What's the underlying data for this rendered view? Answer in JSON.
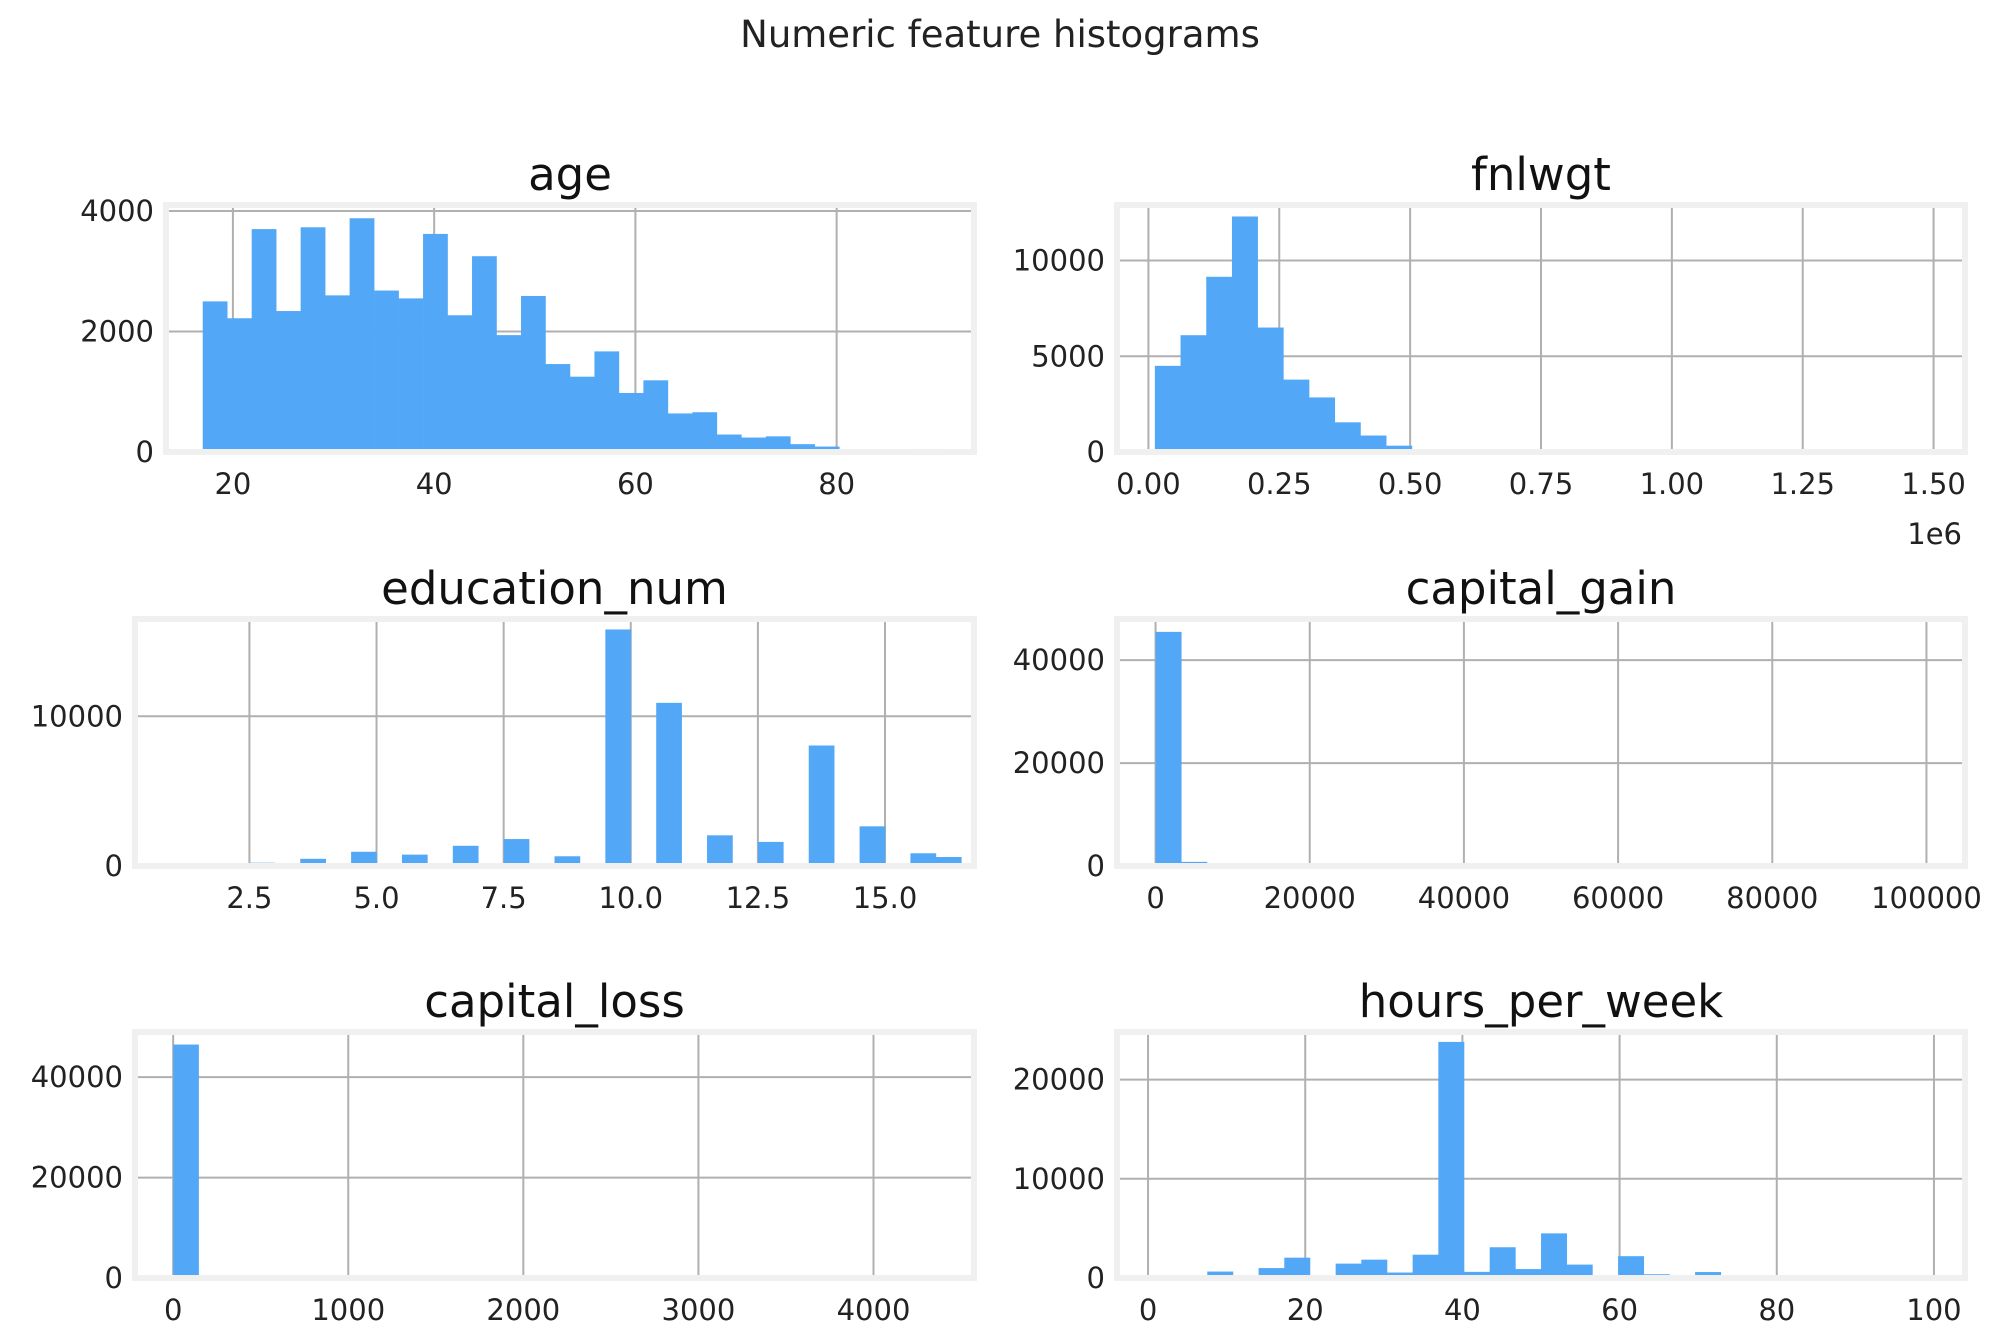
{
  "title": "Numeric feature histograms",
  "colors": {
    "bar": "#52a8f7",
    "grid": "#b0b0b0",
    "frame": "#f0f0f0"
  },
  "chart_data": [
    {
      "type": "bar",
      "title": "age",
      "grid": true,
      "xlim": [
        13.35,
        93.65
      ],
      "ylim": [
        0,
        4100
      ],
      "xticks": [
        20,
        40,
        60,
        80
      ],
      "yticks": [
        0,
        2000,
        4000
      ],
      "x_offset_label": "",
      "bin_start": 17,
      "bin_width": 2.433,
      "values": [
        2500,
        2220,
        3700,
        2340,
        3730,
        2600,
        3880,
        2680,
        2550,
        3620,
        2270,
        3250,
        1940,
        2590,
        1460,
        1250,
        1670,
        980,
        1190,
        640,
        660,
        290,
        240,
        260,
        130,
        90,
        20,
        20,
        20,
        50
      ]
    },
    {
      "type": "bar",
      "title": "fnlwgt",
      "grid": true,
      "xlim": [
        -0.06,
        1.56
      ],
      "ylim": [
        0,
        12900
      ],
      "xticks": [
        0.0,
        0.25,
        0.5,
        0.75,
        1.0,
        1.25,
        1.5
      ],
      "xtick_labels": [
        "0.00",
        "0.25",
        "0.50",
        "0.75",
        "1.00",
        "1.25",
        "1.50"
      ],
      "yticks": [
        0,
        5000,
        10000
      ],
      "x_offset_label": "1e6",
      "bin_start": 0.0123,
      "bin_width": 0.0491,
      "values": [
        4500,
        6100,
        9150,
        12300,
        6500,
        3780,
        2850,
        1550,
        860,
        330,
        120,
        40,
        15,
        10,
        5,
        5,
        3,
        2,
        2,
        1,
        1,
        1,
        1,
        1,
        1,
        1,
        1,
        1,
        1,
        1
      ]
    },
    {
      "type": "bar",
      "title": "education_num",
      "grid": true,
      "xlim": [
        0.25,
        16.75
      ],
      "ylim": [
        0,
        16500
      ],
      "xticks": [
        2.5,
        5.0,
        7.5,
        10.0,
        12.5,
        15.0
      ],
      "xtick_labels": [
        "2.5",
        "5.0",
        "7.5",
        "10.0",
        "12.5",
        "15.0"
      ],
      "yticks": [
        0,
        10000
      ],
      "x_offset_label": "",
      "bin_start": 1,
      "bin_width": 0.5,
      "values": [
        80,
        0,
        0,
        220,
        0,
        480,
        0,
        950,
        0,
        760,
        0,
        1350,
        0,
        1800,
        0,
        650,
        0,
        15800,
        0,
        10900,
        0,
        2050,
        0,
        1610,
        0,
        8050,
        0,
        2650,
        0,
        850,
        600
      ]
    },
    {
      "type": "bar",
      "title": "capital_gain",
      "grid": true,
      "xlim": [
        -5000,
        105000
      ],
      "ylim": [
        0,
        48000
      ],
      "xticks": [
        0,
        20000,
        40000,
        60000,
        80000,
        100000
      ],
      "yticks": [
        0,
        20000,
        40000
      ],
      "x_offset_label": "",
      "bin_start": 0,
      "bin_width": 3333.3,
      "values": [
        45500,
        800,
        500,
        60,
        20,
        20,
        15,
        10,
        10,
        10,
        8,
        8,
        6,
        6,
        5,
        5,
        5,
        4,
        4,
        4,
        3,
        3,
        3,
        3,
        3,
        3,
        3,
        3,
        2,
        240
      ]
    },
    {
      "type": "bar",
      "title": "capital_loss",
      "grid": true,
      "xlim": [
        -218,
        4574
      ],
      "ylim": [
        0,
        49000
      ],
      "xticks": [
        0,
        1000,
        2000,
        3000,
        4000
      ],
      "yticks": [
        0,
        20000,
        40000
      ],
      "x_offset_label": "",
      "bin_start": 0,
      "bin_width": 145.2,
      "values": [
        46500,
        10,
        8,
        8,
        8,
        10,
        8,
        10,
        20,
        30,
        40,
        60,
        50,
        80,
        90,
        100,
        80,
        40,
        20,
        15,
        10,
        8,
        5,
        5,
        3,
        3,
        2,
        2,
        2,
        5
      ]
    },
    {
      "type": "bar",
      "title": "hours_per_week",
      "grid": true,
      "xlim": [
        -3.95,
        103.95
      ],
      "ylim": [
        0,
        24800
      ],
      "xticks": [
        0,
        20,
        40,
        60,
        80,
        100
      ],
      "yticks": [
        0,
        10000,
        20000
      ],
      "x_offset_label": "",
      "bin_start": 1,
      "bin_width": 3.267,
      "values": [
        90,
        110,
        650,
        290,
        1000,
        2050,
        130,
        1450,
        1850,
        550,
        2350,
        23800,
        620,
        3100,
        900,
        4500,
        1350,
        220,
        2200,
        380,
        50,
        600,
        220,
        150,
        90,
        50,
        40,
        40,
        30,
        170
      ]
    }
  ]
}
